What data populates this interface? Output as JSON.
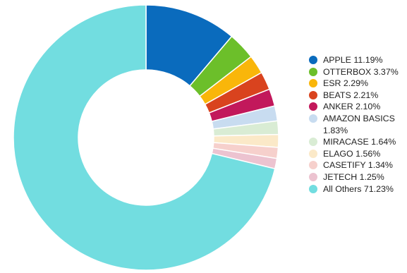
{
  "chart_data": {
    "type": "pie",
    "donut": true,
    "legend_position": "right",
    "slices": [
      {
        "label": "APPLE 11.19%",
        "value": 11.19,
        "color": "#0a6bbd"
      },
      {
        "label": "OTTERBOX 3.37%",
        "value": 3.37,
        "color": "#6cbf2a"
      },
      {
        "label": "ESR 2.29%",
        "value": 2.29,
        "color": "#f9b60a"
      },
      {
        "label": "BEATS 2.21%",
        "value": 2.21,
        "color": "#d9431e"
      },
      {
        "label": "ANKER 2.10%",
        "value": 2.1,
        "color": "#c2185b"
      },
      {
        "label": "AMAZON BASICS 1.83%",
        "value": 1.83,
        "color": "#c8dcf0"
      },
      {
        "label": "MIRACASE 1.64%",
        "value": 1.64,
        "color": "#d9ecd4"
      },
      {
        "label": "ELAGO 1.56%",
        "value": 1.56,
        "color": "#fbe9c8"
      },
      {
        "label": "CASETIFY 1.34%",
        "value": 1.34,
        "color": "#f6d0cc"
      },
      {
        "label": "JETECH 1.25%",
        "value": 1.25,
        "color": "#ecc3d0"
      },
      {
        "label": "All Others 71.23%",
        "value": 71.23,
        "color": "#72dde0"
      }
    ]
  }
}
